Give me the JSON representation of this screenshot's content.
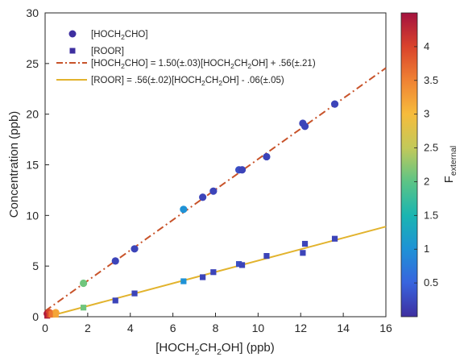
{
  "chart_data": {
    "type": "scatter",
    "xlabel": {
      "main": "[HOCH",
      "s1": "2",
      "m1": "CH",
      "s2": "2",
      "tail": "OH] (ppb)"
    },
    "ylabel": "Concentration (ppb)",
    "xlim": [
      0,
      16
    ],
    "ylim": [
      0,
      30
    ],
    "xticks": [
      "0",
      "2",
      "4",
      "6",
      "8",
      "10",
      "12",
      "14",
      "16"
    ],
    "yticks": [
      "0",
      "5",
      "10",
      "15",
      "20",
      "25",
      "30"
    ],
    "grid": false,
    "legend_position": "top-left",
    "legend": {
      "s1": {
        "main": "[HOCH",
        "sub": "2",
        "tail": "CHO]"
      },
      "s2": {
        "main": "[ROOR]"
      },
      "f1": {
        "a": "[HOCH",
        "b": "2",
        "c": "CHO] = 1.50(±.03)[HOCH",
        "d": "2",
        "e": "CH",
        "f": "2",
        "g": "OH] + .56(±.21)"
      },
      "f2": {
        "a": "[ROOR] = .56(±.02)[HOCH",
        "b": "2",
        "c": "CH",
        "d": "2",
        "e": "OH] - .06(±.05)"
      }
    },
    "series": [
      {
        "name": "[HOCH2CHO]",
        "marker": "circle",
        "points": [
          {
            "x": 0.1,
            "y": 0.3,
            "c": 4.4
          },
          {
            "x": 0.2,
            "y": 0.4,
            "c": 4.0
          },
          {
            "x": 0.3,
            "y": 0.3,
            "c": 3.6
          },
          {
            "x": 0.5,
            "y": 0.4,
            "c": 3.2
          },
          {
            "x": 1.8,
            "y": 3.3,
            "c": 2.1
          },
          {
            "x": 3.3,
            "y": 5.5,
            "c": 0.2
          },
          {
            "x": 4.2,
            "y": 6.7,
            "c": 0.2
          },
          {
            "x": 6.5,
            "y": 10.6,
            "c": 1.0
          },
          {
            "x": 7.4,
            "y": 11.8,
            "c": 0.2
          },
          {
            "x": 7.9,
            "y": 12.4,
            "c": 0.2
          },
          {
            "x": 9.1,
            "y": 14.5,
            "c": 0.3
          },
          {
            "x": 9.25,
            "y": 14.5,
            "c": 0.2
          },
          {
            "x": 10.4,
            "y": 15.8,
            "c": 0.2
          },
          {
            "x": 12.1,
            "y": 19.1,
            "c": 0.2
          },
          {
            "x": 12.2,
            "y": 18.8,
            "c": 0.2
          },
          {
            "x": 13.6,
            "y": 21.0,
            "c": 0.2
          }
        ]
      },
      {
        "name": "[ROOR]",
        "marker": "square",
        "points": [
          {
            "x": 0.1,
            "y": 0.1,
            "c": 4.4
          },
          {
            "x": 0.2,
            "y": 0.2,
            "c": 4.0
          },
          {
            "x": 0.3,
            "y": 0.2,
            "c": 3.6
          },
          {
            "x": 0.5,
            "y": 0.2,
            "c": 3.2
          },
          {
            "x": 1.8,
            "y": 0.9,
            "c": 2.1
          },
          {
            "x": 3.3,
            "y": 1.6,
            "c": 0.2
          },
          {
            "x": 4.2,
            "y": 2.3,
            "c": 0.2
          },
          {
            "x": 6.5,
            "y": 3.5,
            "c": 1.0
          },
          {
            "x": 7.4,
            "y": 3.9,
            "c": 0.2
          },
          {
            "x": 7.9,
            "y": 4.4,
            "c": 0.2
          },
          {
            "x": 9.1,
            "y": 5.2,
            "c": 0.3
          },
          {
            "x": 9.25,
            "y": 5.1,
            "c": 0.2
          },
          {
            "x": 10.4,
            "y": 6.0,
            "c": 0.2
          },
          {
            "x": 12.1,
            "y": 6.3,
            "c": 0.2
          },
          {
            "x": 12.2,
            "y": 7.2,
            "c": 0.2
          },
          {
            "x": 13.6,
            "y": 7.7,
            "c": 0.2
          }
        ]
      }
    ],
    "fits": [
      {
        "slope": 1.5,
        "intercept": 0.56,
        "color": "#c8532a",
        "style": "dash-dot"
      },
      {
        "slope": 0.56,
        "intercept": -0.06,
        "color": "#e2b32d",
        "style": "solid"
      }
    ],
    "colorbar": {
      "label": {
        "main": "F",
        "sub": "external"
      },
      "range": [
        0,
        4.5
      ],
      "ticks": [
        "0.5",
        "1",
        "1.5",
        "2",
        "2.5",
        "3",
        "3.5",
        "4"
      ],
      "colormap": [
        "#3e2fa0",
        "#3864de",
        "#1f92d6",
        "#1ab5b1",
        "#5cc486",
        "#c2c95a",
        "#f6bc3c",
        "#f08233",
        "#d9432c",
        "#a4123f"
      ]
    }
  }
}
